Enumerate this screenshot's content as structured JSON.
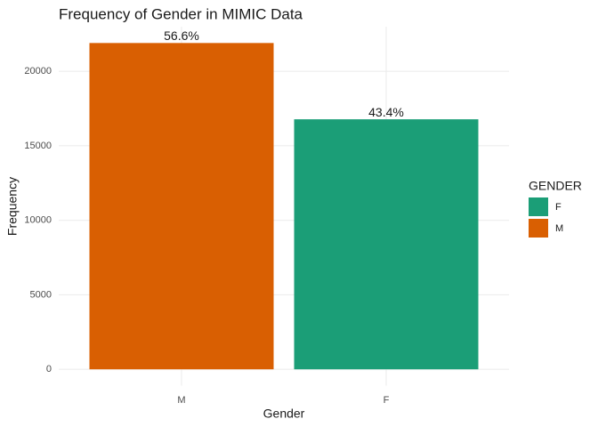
{
  "chart_data": {
    "type": "bar",
    "title": "Frequency of Gender in MIMIC Data",
    "x_label": "Gender",
    "y_label": "Frequency",
    "categories": [
      "M",
      "F"
    ],
    "values": [
      21900,
      16780
    ],
    "value_labels": [
      "56.6%",
      "43.4%"
    ],
    "colors": [
      "#d95f02",
      "#1b9e77"
    ],
    "ylim": [
      -1095,
      22995
    ],
    "yticks": [
      0,
      5000,
      10000,
      15000,
      20000
    ],
    "grid": true,
    "legend": {
      "title": "GENDER",
      "position": "right",
      "items": [
        {
          "name": "F",
          "color": "#1b9e77"
        },
        {
          "name": "M",
          "color": "#d95f02"
        }
      ]
    }
  }
}
